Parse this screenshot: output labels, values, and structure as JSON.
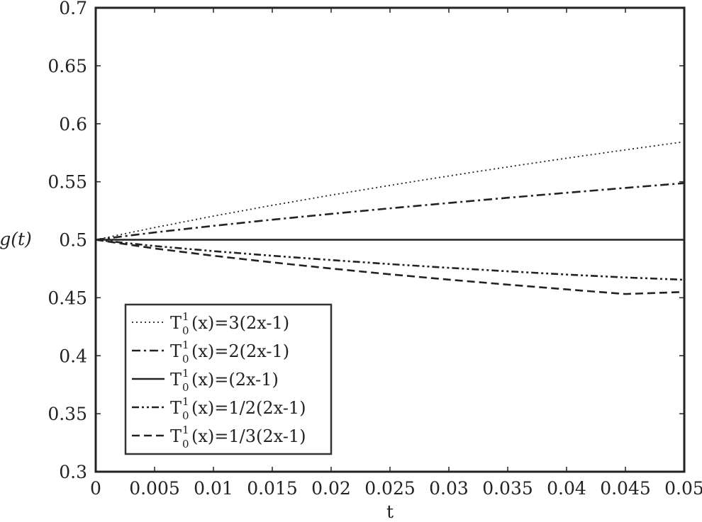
{
  "chart_data": {
    "type": "line",
    "xlabel": "t",
    "ylabel": "g(t)",
    "xlim": [
      0,
      0.05
    ],
    "ylim": [
      0.3,
      0.7
    ],
    "xticks": [
      0,
      0.005,
      0.01,
      0.015,
      0.02,
      0.025,
      0.03,
      0.035,
      0.04,
      0.045,
      0.05
    ],
    "xtick_labels": [
      "0",
      "0.005",
      "0.01",
      "0.015",
      "0.02",
      "0.025",
      "0.03",
      "0.035",
      "0.04",
      "0.045",
      "0.05"
    ],
    "yticks": [
      0.3,
      0.35,
      0.4,
      0.45,
      0.5,
      0.55,
      0.6,
      0.65,
      0.7
    ],
    "ytick_labels": [
      "0.3",
      "0.35",
      "0.4",
      "0.45",
      "0.5",
      "0.55",
      "0.6",
      "0.65",
      "0.7"
    ],
    "grid": false,
    "legend_position": "bottom-left",
    "x": [
      0,
      0.005,
      0.01,
      0.015,
      0.02,
      0.025,
      0.03,
      0.035,
      0.04,
      0.045,
      0.05
    ],
    "series": [
      {
        "name_main": "T",
        "name_sup": "1",
        "name_sub": "0",
        "name_rest": "(x)=3(2x-1)",
        "style": "dotted",
        "values": [
          0.5,
          0.5105,
          0.5204,
          0.5297,
          0.5385,
          0.5469,
          0.555,
          0.5628,
          0.5703,
          0.5775,
          0.5845
        ]
      },
      {
        "name_main": "T",
        "name_sup": "1",
        "name_sub": "0",
        "name_rest": "(x)=2(2x-1)",
        "style": "dashdot",
        "values": [
          0.5,
          0.5063,
          0.512,
          0.5173,
          0.5223,
          0.5271,
          0.5317,
          0.5362,
          0.5405,
          0.5447,
          0.5488
        ]
      },
      {
        "name_main": "T",
        "name_sup": "1",
        "name_sub": "0",
        "name_rest": "(x)=(2x-1)",
        "style": "solid",
        "values": [
          0.5,
          0.5,
          0.5,
          0.5,
          0.5,
          0.5,
          0.5,
          0.5,
          0.5,
          0.5,
          0.5
        ]
      },
      {
        "name_main": "T",
        "name_sup": "1",
        "name_sub": "0",
        "name_rest": "(x)=1/2(2x-1)",
        "style": "dashdotdot",
        "values": [
          0.5,
          0.4946,
          0.4902,
          0.4862,
          0.4825,
          0.479,
          0.4758,
          0.4728,
          0.47,
          0.4675,
          0.4655
        ]
      },
      {
        "name_main": "T",
        "name_sup": "1",
        "name_sub": "0",
        "name_rest": "(x)=1/3(2x-1)",
        "style": "dashed",
        "values": [
          0.5,
          0.4925,
          0.4862,
          0.4805,
          0.4752,
          0.4702,
          0.4656,
          0.4613,
          0.4572,
          0.4532,
          0.455
        ]
      }
    ]
  }
}
